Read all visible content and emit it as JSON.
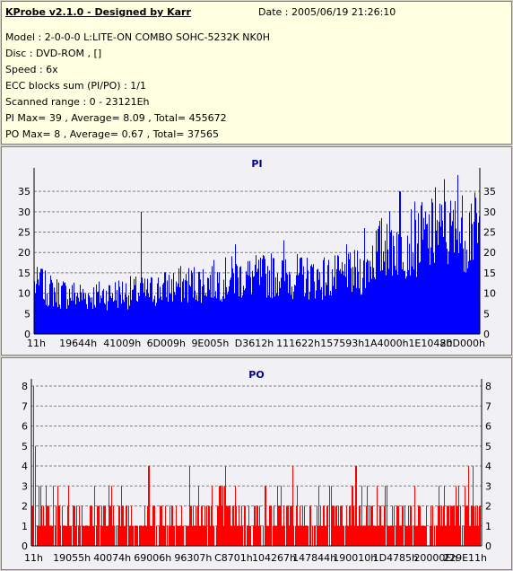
{
  "app_title": "KProbe v2.1.0 - Designed by Karr",
  "date": "Date : 2005/06/19 21:26:10",
  "info_lines": [
    "Model : 2-0-0-0 L:LITE-ON COMBO SOHC-5232K NK0H",
    "Disc : DVD-ROM ,  []",
    "Speed : 6x",
    "ECC blocks sum (PI/PO) : 1/1",
    "Scanned range : 0 - 23121Eh",
    "PI Max= 39 , Average= 8.09 , Total= 455672",
    "PO Max= 8 , Average= 0.67 , Total= 37565"
  ],
  "colors": {
    "pi": "#0000ff",
    "po": "#ff0000",
    "grid": "#808080",
    "title": "#00008b"
  },
  "chart_data": [
    {
      "type": "bar",
      "title": "PI",
      "ylim": [
        0,
        39
      ],
      "yticks": [
        0,
        5,
        10,
        15,
        20,
        25,
        30,
        35
      ],
      "xtick_labels": [
        "11h",
        "19644h",
        "41009h",
        "6D009h",
        "9E005h",
        "D3612h",
        "111622h",
        "157593h",
        "1A4000h",
        "1E1048h",
        "20D000h"
      ],
      "profile": [
        [
          0,
          13
        ],
        [
          0.05,
          11
        ],
        [
          0.12,
          10
        ],
        [
          0.2,
          11
        ],
        [
          0.25,
          11
        ],
        [
          0.28,
          12
        ],
        [
          0.33,
          13
        ],
        [
          0.4,
          14
        ],
        [
          0.45,
          15
        ],
        [
          0.5,
          15
        ],
        [
          0.55,
          16
        ],
        [
          0.6,
          15
        ],
        [
          0.65,
          15
        ],
        [
          0.7,
          15
        ],
        [
          0.72,
          16
        ],
        [
          0.74,
          17
        ],
        [
          0.76,
          21
        ],
        [
          0.8,
          24
        ],
        [
          0.85,
          25
        ],
        [
          0.9,
          26
        ],
        [
          0.95,
          27
        ],
        [
          1.0,
          27
        ]
      ],
      "spikes": [
        [
          0.015,
          16
        ],
        [
          0.24,
          30
        ],
        [
          0.45,
          22
        ],
        [
          0.56,
          23
        ],
        [
          0.7,
          22
        ],
        [
          0.74,
          26
        ],
        [
          0.79,
          27
        ],
        [
          0.82,
          35
        ],
        [
          0.9,
          36
        ],
        [
          0.92,
          38
        ],
        [
          0.95,
          39
        ],
        [
          0.98,
          32
        ]
      ],
      "grid": true
    },
    {
      "type": "bar",
      "title": "PO",
      "ylim": [
        0,
        8
      ],
      "yticks": [
        0,
        1,
        2,
        3,
        4,
        5,
        6,
        7,
        8
      ],
      "xtick_labels": [
        "11h",
        "19055h",
        "40074h",
        "69006h",
        "96307h",
        "C8701h",
        "104267h",
        "147844h",
        "190010h",
        "1D4785h",
        "20000Eh",
        "229E11h"
      ],
      "profile": [
        [
          0,
          1
        ],
        [
          1.0,
          1
        ]
      ],
      "spikes": [
        [
          0.004,
          8
        ],
        [
          0.008,
          5
        ],
        [
          0.26,
          4
        ],
        [
          0.35,
          4
        ],
        [
          0.43,
          4
        ],
        [
          0.58,
          4
        ],
        [
          0.72,
          4
        ],
        [
          0.97,
          4
        ],
        [
          0.98,
          4
        ]
      ],
      "grid": true
    }
  ]
}
